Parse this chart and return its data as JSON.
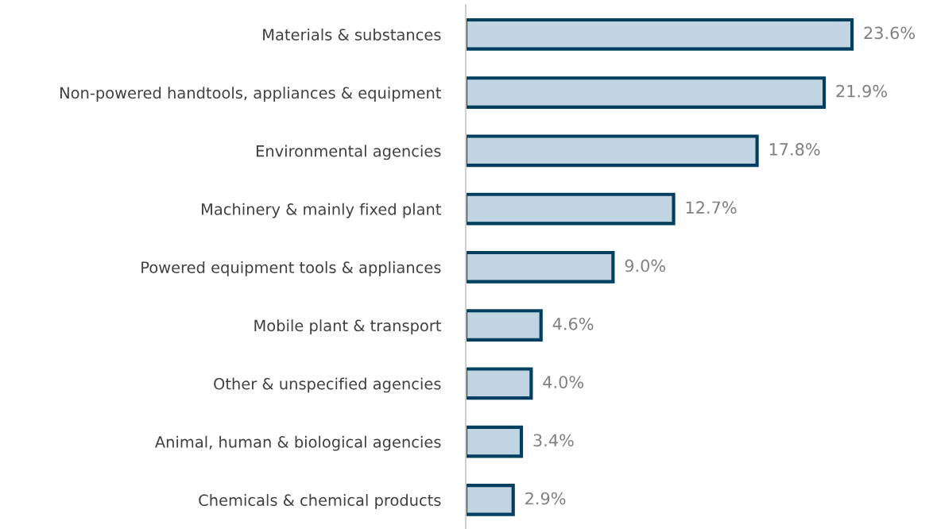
{
  "chart_data": {
    "type": "bar",
    "orientation": "horizontal",
    "categories": [
      "Materials & substances",
      "Non-powered handtools, appliances & equipment",
      "Environmental agencies",
      "Machinery & mainly fixed plant",
      "Powered equipment tools & appliances",
      "Mobile plant & transport",
      "Other & unspecified agencies",
      "Animal, human & biological agencies",
      "Chemicals & chemical products"
    ],
    "values": [
      23.6,
      21.9,
      17.8,
      12.7,
      9.0,
      4.6,
      4.0,
      3.4,
      2.9
    ],
    "value_labels": [
      "23.6%",
      "21.9%",
      "17.8%",
      "12.7%",
      "9.0%",
      "4.6%",
      "4.0%",
      "3.4%",
      "2.9%"
    ],
    "color": "#c0d4e1",
    "tick_labels": "y",
    "grid": false,
    "legend": false
  }
}
